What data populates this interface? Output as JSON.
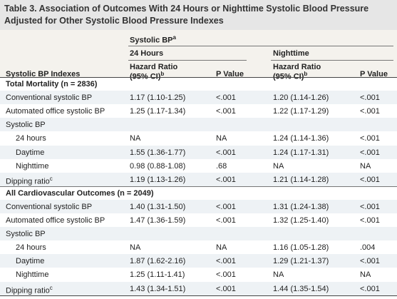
{
  "title_lines": [
    "Table 3. Association of Outcomes With 24 Hours or Nighttime Systolic Blood Pressure",
    "Adjusted for Other Systolic Blood Pressure Indexes"
  ],
  "header": {
    "row_label": "Systolic BP Indexes",
    "group": {
      "text": "Systolic BP",
      "sup": "a"
    },
    "periods": [
      "24 Hours",
      "Nighttime"
    ],
    "estimate": {
      "lines": [
        "Hazard Ratio",
        "(95% CI)"
      ],
      "sup": "b"
    },
    "p": "P Value"
  },
  "sections": [
    {
      "title": "Total Mortality (n = 2836)",
      "rows": [
        {
          "label": "Conventional systolic BP",
          "cells": [
            "1.17 (1.10-1.25)",
            "<.001",
            "1.20 (1.14-1.26)",
            "<.001"
          ]
        },
        {
          "label": "Automated office systolic BP",
          "cells": [
            "1.25 (1.17-1.34)",
            "<.001",
            "1.22 (1.17-1.29)",
            "<.001"
          ]
        },
        {
          "label": "Systolic BP",
          "rows": [
            {
              "label": "24 hours",
              "cells": [
                "NA",
                "NA",
                "1.24 (1.14-1.36)",
                "<.001"
              ]
            },
            {
              "label": "Daytime",
              "cells": [
                "1.55 (1.36-1.77)",
                "<.001",
                "1.24 (1.17-1.31)",
                "<.001"
              ]
            },
            {
              "label": "Nighttime",
              "cells": [
                "0.98 (0.88-1.08)",
                ".68",
                "NA",
                "NA"
              ]
            }
          ]
        },
        {
          "label": "Dipping ratio",
          "sup": "c",
          "cells": [
            "1.19 (1.13-1.26)",
            "<.001",
            "1.21 (1.14-1.28)",
            "<.001"
          ]
        }
      ]
    },
    {
      "title": "All Cardiovascular Outcomes (n = 2049)",
      "rows": [
        {
          "label": "Conventional systolic BP",
          "cells": [
            "1.40 (1.31-1.50)",
            "<.001",
            "1.31 (1.24-1.38)",
            "<.001"
          ]
        },
        {
          "label": "Automated office systolic BP",
          "cells": [
            "1.47 (1.36-1.59)",
            "<.001",
            "1.32 (1.25-1.40)",
            "<.001"
          ]
        },
        {
          "label": "Systolic BP",
          "rows": [
            {
              "label": "24 hours",
              "cells": [
                "NA",
                "NA",
                "1.16 (1.05-1.28)",
                ".004"
              ]
            },
            {
              "label": "Daytime",
              "cells": [
                "1.87 (1.62-2.16)",
                "<.001",
                "1.29 (1.21-1.37)",
                "<.001"
              ]
            },
            {
              "label": "Nighttime",
              "cells": [
                "1.25 (1.11-1.41)",
                "<.001",
                "NA",
                "NA"
              ]
            }
          ]
        },
        {
          "label": "Dipping ratio",
          "sup": "c",
          "cells": [
            "1.43 (1.34-1.51)",
            "<.001",
            "1.44 (1.35-1.54)",
            "<.001"
          ]
        }
      ]
    }
  ]
}
